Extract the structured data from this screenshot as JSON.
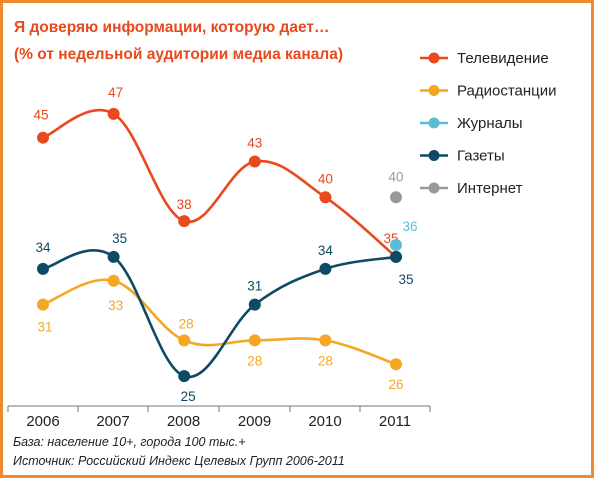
{
  "chart_data": {
    "type": "line",
    "title": "Я доверяю информации, которую дает…",
    "subtitle": "(% от недельной аудитории  медиа канала)",
    "x": [
      "2006",
      "2007",
      "2008",
      "2009",
      "2010",
      "2011"
    ],
    "ylim": [
      23,
      49
    ],
    "grid": false,
    "legend_position": "right",
    "series": [
      {
        "name": "Телевидение",
        "color": "#e8491d",
        "values": [
          45,
          47,
          38,
          43,
          40,
          35
        ]
      },
      {
        "name": "Радиостанции",
        "color": "#f5a623",
        "values": [
          31,
          33,
          28,
          28,
          28,
          26
        ]
      },
      {
        "name": "Журналы",
        "color": "#5bbcd6",
        "values": [
          null,
          null,
          null,
          null,
          null,
          36
        ]
      },
      {
        "name": "Газеты",
        "color": "#0e4a63",
        "values": [
          34,
          35,
          25,
          31,
          34,
          35
        ]
      },
      {
        "name": "Интернет",
        "color": "#999999",
        "values": [
          null,
          null,
          null,
          null,
          null,
          40
        ]
      }
    ],
    "footnotes": [
      "База: население 10+, города 100 тыс.+",
      "Источник: Российский Индекс Целевых Групп 2006-2011"
    ]
  }
}
